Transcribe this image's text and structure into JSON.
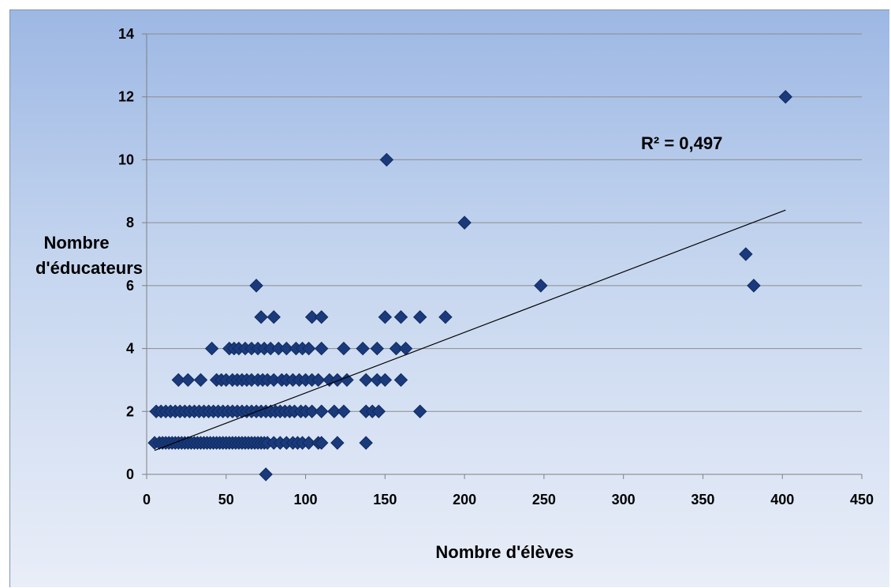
{
  "chart_data": {
    "type": "scatter",
    "title": "",
    "xlabel": "Nombre d'élèves",
    "ylabel": [
      "Nombre",
      "d'éducateurs"
    ],
    "xlim": [
      0,
      450
    ],
    "ylim": [
      0,
      14
    ],
    "xticks": [
      "0",
      "50",
      "100",
      "150",
      "200",
      "250",
      "300",
      "350",
      "400",
      "450"
    ],
    "yticks": [
      "0",
      "2",
      "4",
      "6",
      "8",
      "10",
      "12",
      "14"
    ],
    "grid": "horizontal",
    "marker": "diamond",
    "marker_color": "#1a3a7c",
    "annotation": "R² = 0,497",
    "trendline": {
      "type": "linear",
      "from": [
        5,
        0.76
      ],
      "to": [
        402,
        8.4
      ]
    },
    "points": [
      [
        5,
        1
      ],
      [
        8,
        1
      ],
      [
        10,
        1
      ],
      [
        12,
        1
      ],
      [
        14,
        1
      ],
      [
        16,
        1
      ],
      [
        18,
        1
      ],
      [
        20,
        1
      ],
      [
        22,
        1
      ],
      [
        24,
        1
      ],
      [
        26,
        1
      ],
      [
        28,
        1
      ],
      [
        30,
        1
      ],
      [
        32,
        1
      ],
      [
        34,
        1
      ],
      [
        36,
        1
      ],
      [
        38,
        1
      ],
      [
        40,
        1
      ],
      [
        42,
        1
      ],
      [
        44,
        1
      ],
      [
        46,
        1
      ],
      [
        48,
        1
      ],
      [
        50,
        1
      ],
      [
        52,
        1
      ],
      [
        54,
        1
      ],
      [
        56,
        1
      ],
      [
        58,
        1
      ],
      [
        60,
        1
      ],
      [
        62,
        1
      ],
      [
        64,
        1
      ],
      [
        66,
        1
      ],
      [
        68,
        1
      ],
      [
        70,
        1
      ],
      [
        72,
        1
      ],
      [
        74,
        1
      ],
      [
        76,
        1
      ],
      [
        80,
        1
      ],
      [
        84,
        1
      ],
      [
        88,
        1
      ],
      [
        92,
        1
      ],
      [
        95,
        1
      ],
      [
        98,
        1
      ],
      [
        102,
        1
      ],
      [
        108,
        1
      ],
      [
        110,
        1
      ],
      [
        120,
        1
      ],
      [
        138,
        1
      ],
      [
        6,
        2
      ],
      [
        9,
        2
      ],
      [
        12,
        2
      ],
      [
        15,
        2
      ],
      [
        18,
        2
      ],
      [
        21,
        2
      ],
      [
        24,
        2
      ],
      [
        27,
        2
      ],
      [
        30,
        2
      ],
      [
        33,
        2
      ],
      [
        36,
        2
      ],
      [
        39,
        2
      ],
      [
        42,
        2
      ],
      [
        45,
        2
      ],
      [
        48,
        2
      ],
      [
        51,
        2
      ],
      [
        54,
        2
      ],
      [
        57,
        2
      ],
      [
        60,
        2
      ],
      [
        63,
        2
      ],
      [
        66,
        2
      ],
      [
        69,
        2
      ],
      [
        72,
        2
      ],
      [
        75,
        2
      ],
      [
        78,
        2
      ],
      [
        81,
        2
      ],
      [
        84,
        2
      ],
      [
        87,
        2
      ],
      [
        90,
        2
      ],
      [
        93,
        2
      ],
      [
        97,
        2
      ],
      [
        100,
        2
      ],
      [
        104,
        2
      ],
      [
        110,
        2
      ],
      [
        118,
        2
      ],
      [
        124,
        2
      ],
      [
        138,
        2
      ],
      [
        142,
        2
      ],
      [
        146,
        2
      ],
      [
        172,
        2
      ],
      [
        20,
        3
      ],
      [
        26,
        3
      ],
      [
        34,
        3
      ],
      [
        44,
        3
      ],
      [
        47,
        3
      ],
      [
        50,
        3
      ],
      [
        54,
        3
      ],
      [
        57,
        3
      ],
      [
        60,
        3
      ],
      [
        63,
        3
      ],
      [
        66,
        3
      ],
      [
        70,
        3
      ],
      [
        73,
        3
      ],
      [
        76,
        3
      ],
      [
        80,
        3
      ],
      [
        85,
        3
      ],
      [
        88,
        3
      ],
      [
        92,
        3
      ],
      [
        96,
        3
      ],
      [
        100,
        3
      ],
      [
        104,
        3
      ],
      [
        108,
        3
      ],
      [
        115,
        3
      ],
      [
        120,
        3
      ],
      [
        126,
        3
      ],
      [
        138,
        3
      ],
      [
        145,
        3
      ],
      [
        150,
        3
      ],
      [
        160,
        3
      ],
      [
        41,
        4
      ],
      [
        52,
        4
      ],
      [
        55,
        4
      ],
      [
        58,
        4
      ],
      [
        62,
        4
      ],
      [
        66,
        4
      ],
      [
        70,
        4
      ],
      [
        74,
        4
      ],
      [
        78,
        4
      ],
      [
        83,
        4
      ],
      [
        88,
        4
      ],
      [
        94,
        4
      ],
      [
        98,
        4
      ],
      [
        102,
        4
      ],
      [
        110,
        4
      ],
      [
        124,
        4
      ],
      [
        136,
        4
      ],
      [
        145,
        4
      ],
      [
        157,
        4
      ],
      [
        163,
        4
      ],
      [
        72,
        5
      ],
      [
        80,
        5
      ],
      [
        104,
        5
      ],
      [
        110,
        5
      ],
      [
        150,
        5
      ],
      [
        160,
        5
      ],
      [
        172,
        5
      ],
      [
        188,
        5
      ],
      [
        69,
        6
      ],
      [
        248,
        6
      ],
      [
        382,
        6
      ],
      [
        377,
        7
      ],
      [
        200,
        8
      ],
      [
        151,
        10
      ],
      [
        402,
        12
      ],
      [
        75,
        0
      ]
    ]
  }
}
